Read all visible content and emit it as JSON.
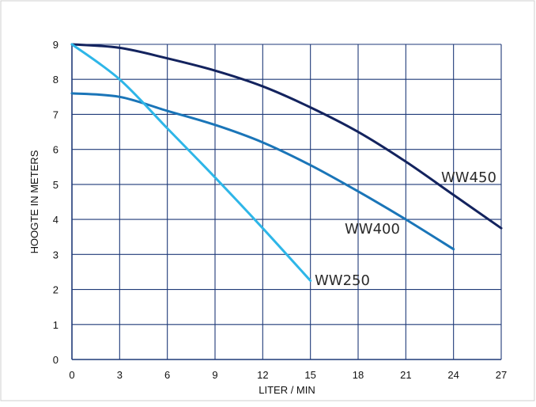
{
  "chart_data": {
    "type": "line",
    "title": "",
    "xlabel": "LITER / MIN",
    "ylabel": "HOOGTE IN METERS",
    "xlim": [
      0,
      27
    ],
    "ylim": [
      0,
      9
    ],
    "x_ticks": [
      "0",
      "3",
      "6",
      "9",
      "12",
      "15",
      "18",
      "21",
      "24",
      "27"
    ],
    "y_ticks": [
      "0",
      "1",
      "2",
      "3",
      "4",
      "5",
      "6",
      "7",
      "8",
      "9"
    ],
    "grid": true,
    "legend": "none (series labelled next to lines)",
    "colors": {
      "grid": "#1f3a78",
      "axis": "#1f3a78",
      "text": "#111111"
    },
    "series": [
      {
        "name": "WW450",
        "color": "#13235e",
        "points": [
          [
            0,
            9.0
          ],
          [
            3,
            8.9
          ],
          [
            6,
            8.6
          ],
          [
            9,
            8.25
          ],
          [
            12,
            7.8
          ],
          [
            15,
            7.2
          ],
          [
            18,
            6.5
          ],
          [
            21,
            5.65
          ],
          [
            24,
            4.7
          ],
          [
            27,
            3.75
          ]
        ]
      },
      {
        "name": "WW400",
        "color": "#1a75b8",
        "points": [
          [
            0,
            7.6
          ],
          [
            3,
            7.5
          ],
          [
            6,
            7.1
          ],
          [
            9,
            6.7
          ],
          [
            12,
            6.2
          ],
          [
            15,
            5.55
          ],
          [
            18,
            4.8
          ],
          [
            21,
            4.0
          ],
          [
            24,
            3.15
          ]
        ]
      },
      {
        "name": "WW250",
        "color": "#2eb6e8",
        "points": [
          [
            0,
            9.0
          ],
          [
            3,
            8.0
          ],
          [
            6,
            6.6
          ],
          [
            9,
            5.2
          ],
          [
            12,
            3.75
          ],
          [
            15,
            2.25
          ]
        ]
      }
    ]
  }
}
